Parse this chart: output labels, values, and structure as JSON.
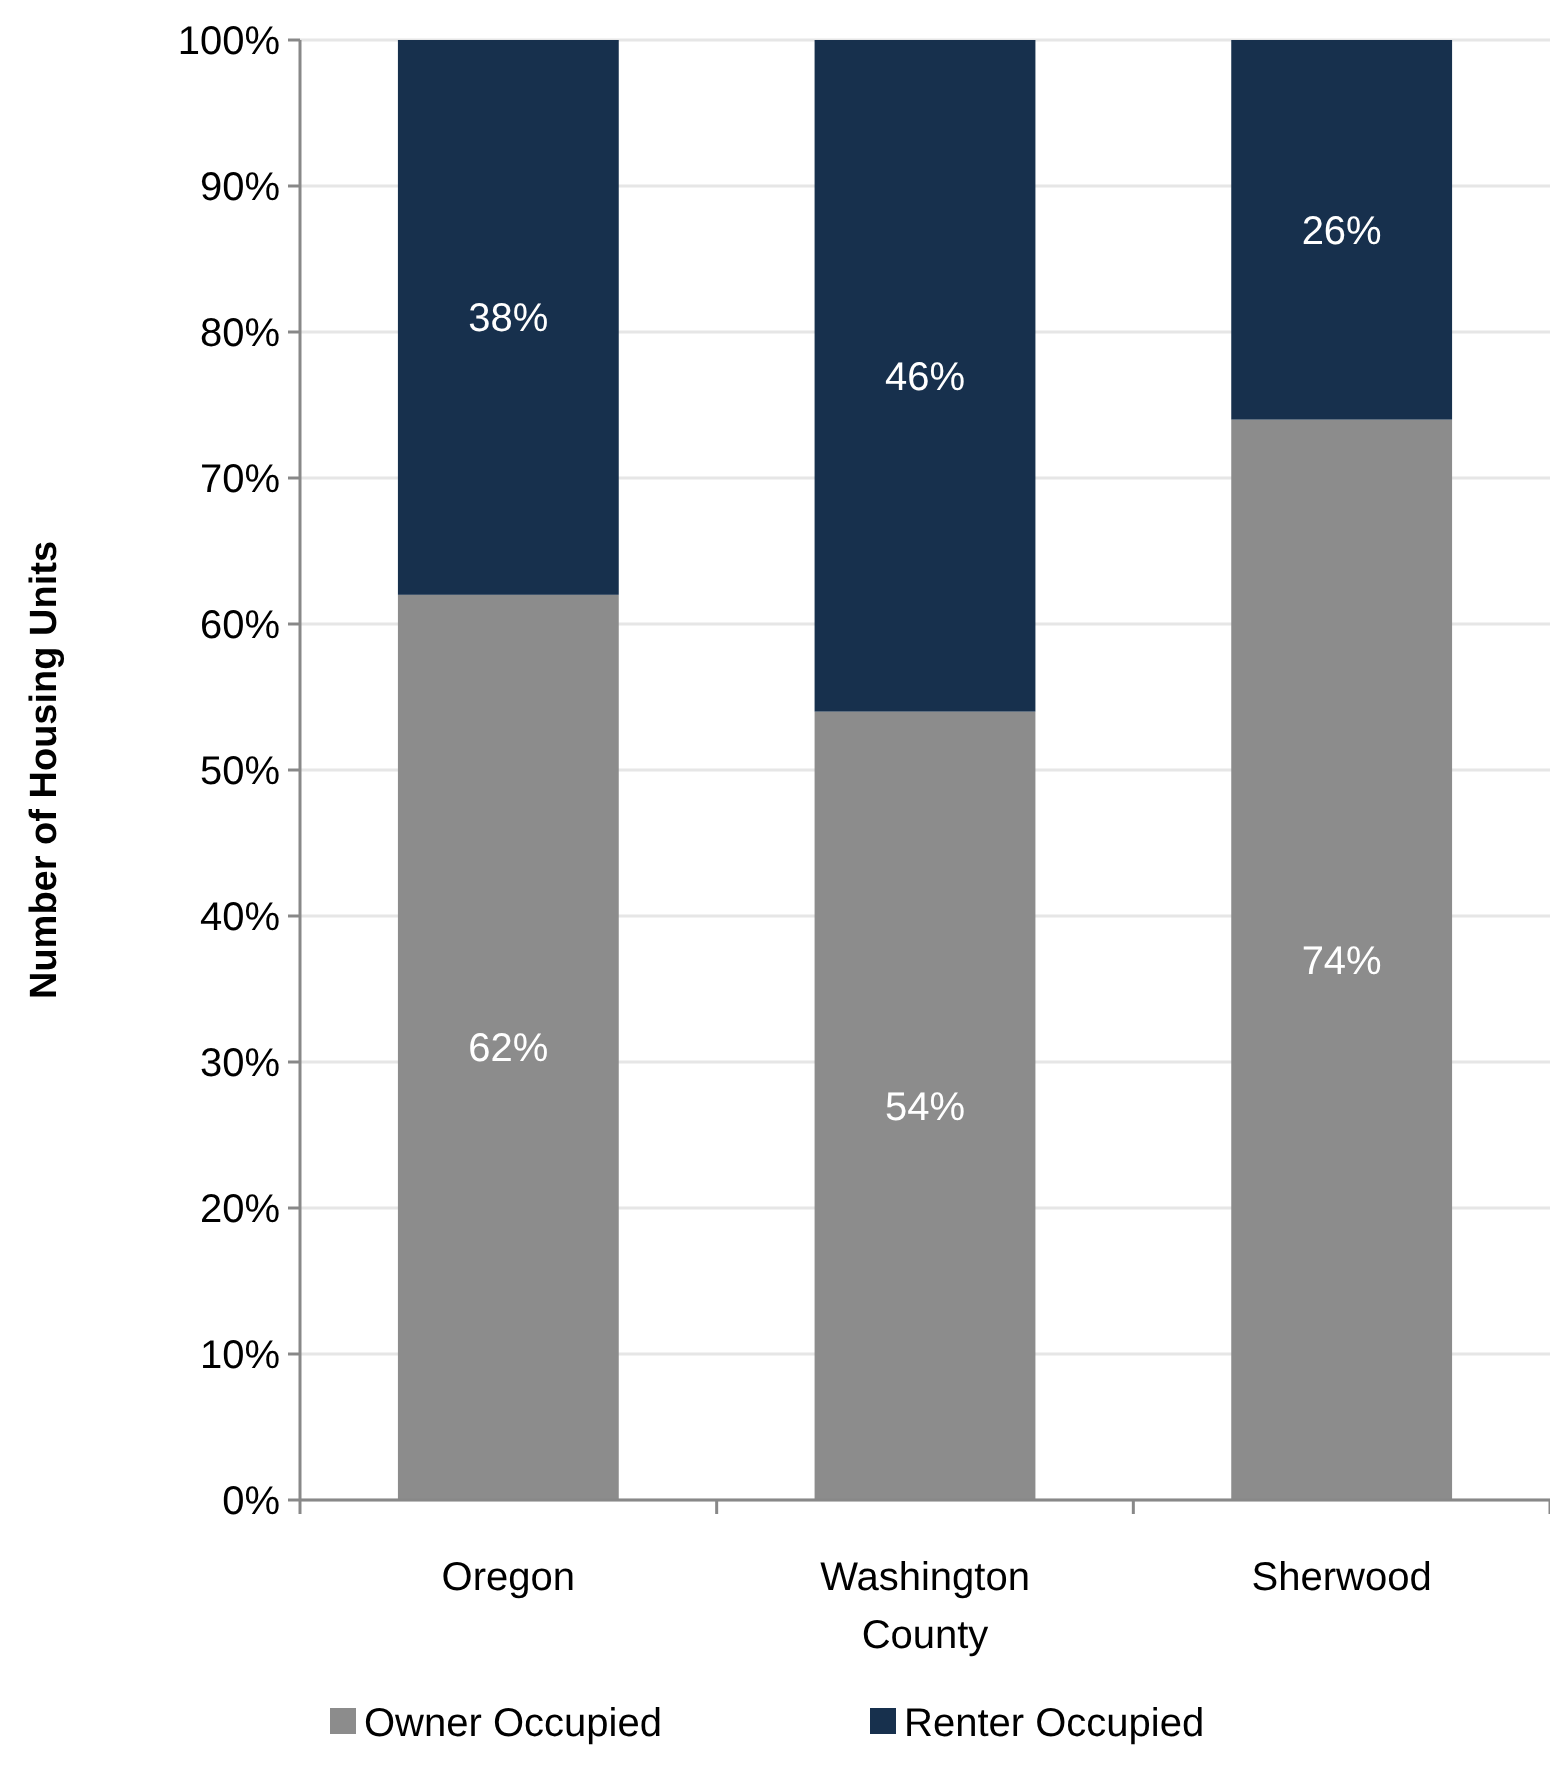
{
  "chart_data": {
    "type": "bar",
    "stacked": true,
    "ylabel": "Number of Housing Units",
    "categories": [
      "Oregon",
      "Washington County",
      "Sherwood"
    ],
    "series": [
      {
        "name": "Owner Occupied",
        "color": "#8c8c8c",
        "values": [
          62,
          54,
          74
        ],
        "value_labels": [
          "62%",
          "54%",
          "74%"
        ]
      },
      {
        "name": "Renter Occupied",
        "color": "#17304d",
        "values": [
          38,
          46,
          26
        ],
        "value_labels": [
          "38%",
          "46%",
          "26%"
        ]
      }
    ],
    "ylim": [
      0,
      100
    ],
    "yticks": [
      {
        "value": 0,
        "label": "0%"
      },
      {
        "value": 10,
        "label": "10%"
      },
      {
        "value": 20,
        "label": "20%"
      },
      {
        "value": 30,
        "label": "30%"
      },
      {
        "value": 40,
        "label": "40%"
      },
      {
        "value": 50,
        "label": "50%"
      },
      {
        "value": 60,
        "label": "60%"
      },
      {
        "value": 70,
        "label": "70%"
      },
      {
        "value": 80,
        "label": "80%"
      },
      {
        "value": 90,
        "label": "90%"
      },
      {
        "value": 100,
        "label": "100%"
      }
    ],
    "grid": "y",
    "legend": "bottom"
  }
}
